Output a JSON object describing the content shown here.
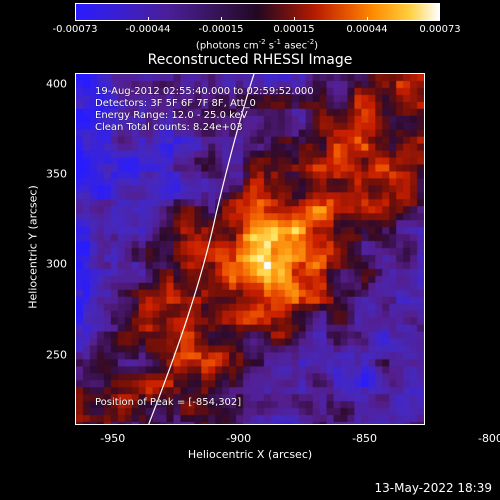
{
  "colorbar": {
    "ticks": [
      "-0.00073",
      "-0.00044",
      "-0.00015",
      "0.00015",
      "0.00044",
      "0.00073"
    ],
    "units_prefix": "(photons cm",
    "units_exp1": "-2",
    "units_mid1": " s",
    "units_exp2": "-1",
    "units_mid2": " asec",
    "units_exp3": "-2",
    "units_suffix": ")"
  },
  "title": "Reconstructed RHESSI Image",
  "info": {
    "time_range": "19-Aug-2012 02:55:40.000 to 02:59:52.000",
    "detectors": "Detectors: 3F 5F 6F 7F 8F, Att_0",
    "energy_range": "Energy Range: 12.0 - 25.0 keV",
    "method_counts": "Clean    Total counts: 8.24e+03",
    "peak": "Position of Peak = [-854,302]"
  },
  "axes": {
    "xlabel": "Heliocentric X (arcsec)",
    "ylabel": "Heliocentric Y (arcsec)",
    "xticks": [
      "-950",
      "-900",
      "-850",
      "-800"
    ],
    "yticks": [
      "400",
      "350",
      "300",
      "250"
    ],
    "xlim": [
      -965,
      -826
    ],
    "ylim": [
      211,
      406
    ]
  },
  "footer": {
    "date": "13-May-2022 18:39"
  },
  "colors": {
    "background": "#000000",
    "foreground": "#ffffff",
    "limb_line": "#ffffff"
  }
}
